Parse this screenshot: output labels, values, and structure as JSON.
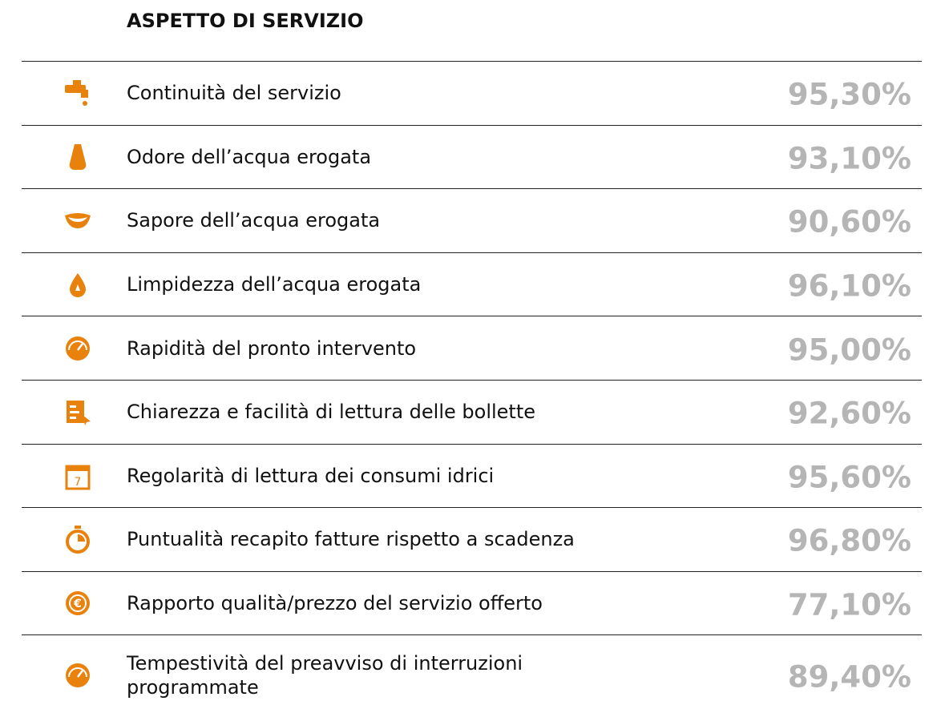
{
  "header": {
    "title": "ASPETTO DI SERVIZIO"
  },
  "table": {
    "rows": [
      {
        "label": "Continuità del servizio",
        "value": "95,30%"
      },
      {
        "label": "Odore dell’acqua erogata",
        "value": "93,10%"
      },
      {
        "label": "Sapore dell’acqua erogata",
        "value": "90,60%"
      },
      {
        "label": "Limpidezza dell’acqua erogata",
        "value": "96,10%"
      },
      {
        "label": "Rapidità del pronto intervento",
        "value": "95,00%"
      },
      {
        "label": "Chiarezza e facilità di lettura delle bollette",
        "value": "92,60%"
      },
      {
        "label": "Regolarità di lettura dei consumi idrici",
        "value": "95,60%"
      },
      {
        "label": "Puntualità recapito fatture rispetto a scadenza",
        "value": "96,80%"
      },
      {
        "label": "Rapporto qualità/prezzo del servizio offerto",
        "value": "77,10%"
      },
      {
        "label": "Tempestività del preavviso di interruzioni programmate",
        "value": "89,40%"
      }
    ]
  }
}
